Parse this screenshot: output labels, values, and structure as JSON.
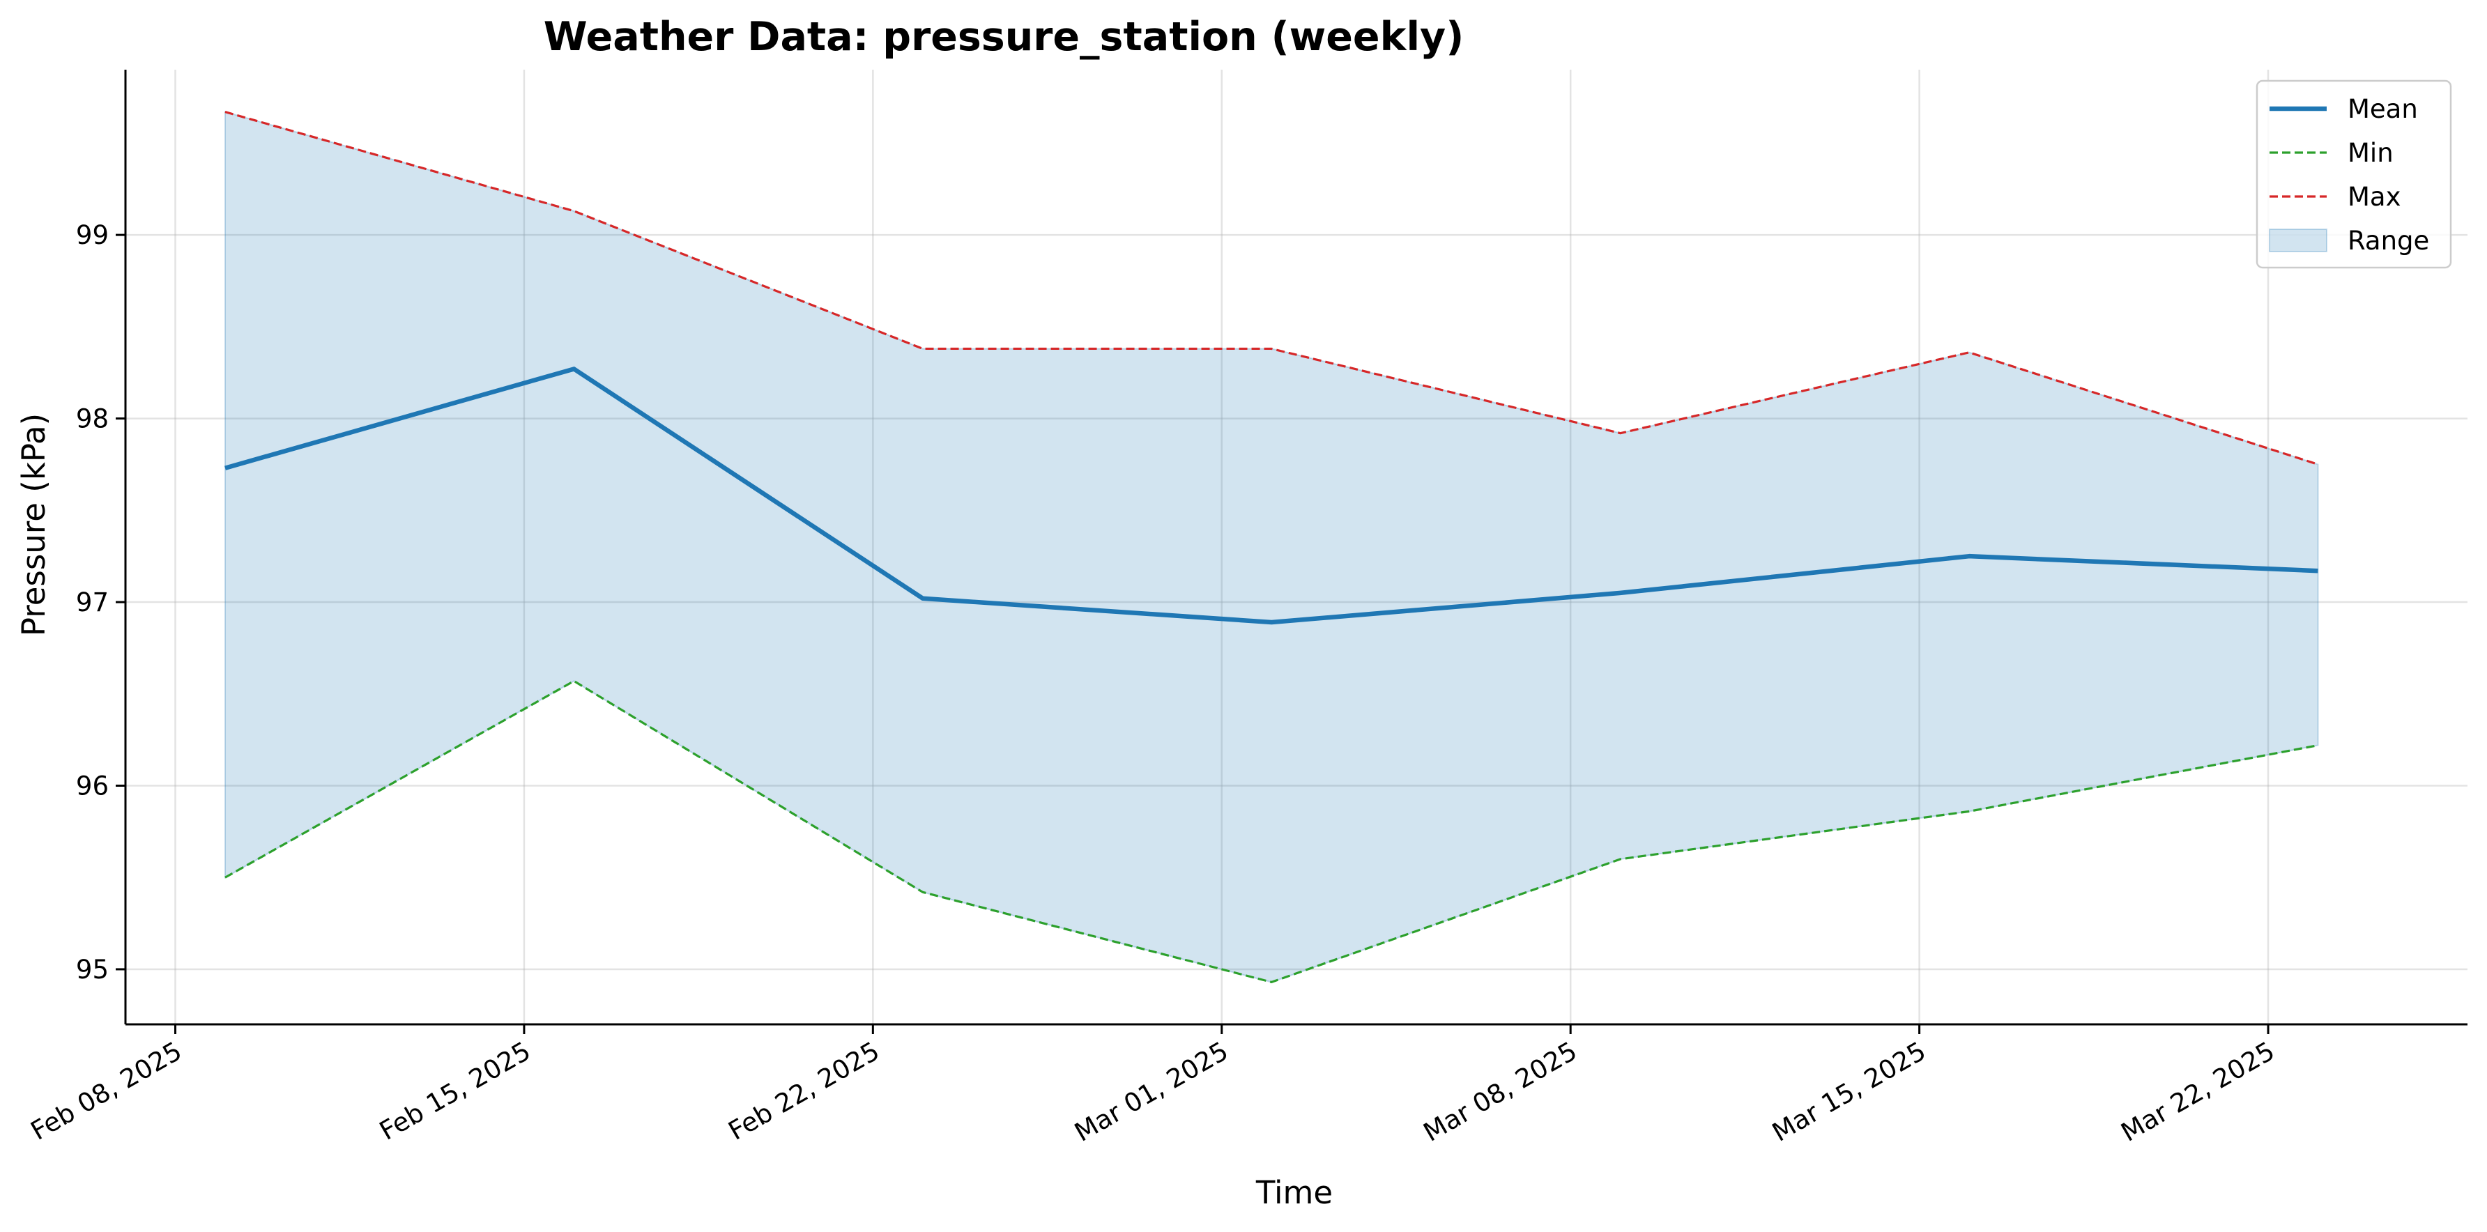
{
  "chart_data": {
    "type": "line",
    "title": "Weather Data: pressure_station (weekly)",
    "xlabel": "Time",
    "ylabel": "Pressure (kPa)",
    "x": [
      "2025-02-09",
      "2025-02-16",
      "2025-02-23",
      "2025-03-02",
      "2025-03-09",
      "2025-03-16",
      "2025-03-23"
    ],
    "x_ticks": [
      {
        "date": "2025-02-08",
        "label": "Feb 08, 2025"
      },
      {
        "date": "2025-02-15",
        "label": "Feb 15, 2025"
      },
      {
        "date": "2025-02-22",
        "label": "Feb 22, 2025"
      },
      {
        "date": "2025-03-01",
        "label": "Mar 01, 2025"
      },
      {
        "date": "2025-03-08",
        "label": "Mar 08, 2025"
      },
      {
        "date": "2025-03-15",
        "label": "Mar 15, 2025"
      },
      {
        "date": "2025-03-22",
        "label": "Mar 22, 2025"
      }
    ],
    "xlim": [
      "2025-02-07",
      "2025-03-26"
    ],
    "y_ticks": [
      95,
      96,
      97,
      98,
      99
    ],
    "ylim": [
      94.7,
      99.9
    ],
    "series": [
      {
        "name": "Mean",
        "style": "solid",
        "color": "#1f77b4",
        "values": [
          97.73,
          98.27,
          97.02,
          96.89,
          97.05,
          97.25,
          97.17
        ]
      },
      {
        "name": "Min",
        "style": "dashed",
        "color": "#2ca02c",
        "values": [
          95.5,
          96.57,
          95.42,
          94.93,
          95.6,
          95.86,
          96.22
        ]
      },
      {
        "name": "Max",
        "style": "dashed",
        "color": "#d62728",
        "values": [
          99.67,
          99.13,
          98.38,
          98.38,
          97.92,
          98.36,
          97.75
        ]
      }
    ],
    "range": {
      "name": "Range",
      "color": "#1f77b4",
      "opacity": 0.2
    },
    "legend": {
      "position": "top-right",
      "entries": [
        "Mean",
        "Min",
        "Max",
        "Range"
      ]
    },
    "grid": true
  }
}
